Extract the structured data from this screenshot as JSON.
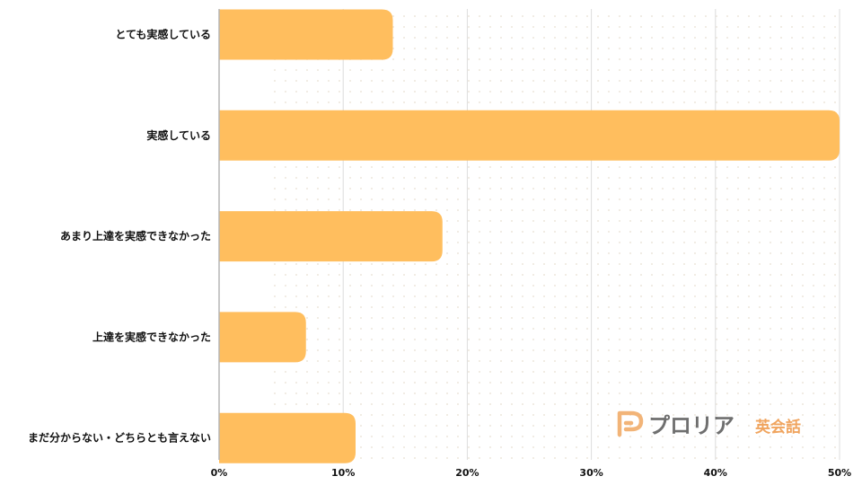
{
  "colors": {
    "bar": "#FFBE5E",
    "grid": "#dcdcdc",
    "axis": "#b5b5b5",
    "dots": "#ece7dc",
    "logo_orange": "#F2B478",
    "logo_gray": "#6f6f6f",
    "logo_sub": "#F0A45E"
  },
  "chart_data": {
    "type": "bar",
    "orientation": "horizontal",
    "categories": [
      "とても実感している",
      "実感している",
      "あまり上達を実感できなかった",
      "上達を実感できなかった",
      "まだ分からない・どちらとも言えない"
    ],
    "values": [
      14,
      50,
      18,
      7,
      11
    ],
    "unit": "%",
    "xlim": [
      0,
      50
    ],
    "xticks": [
      0,
      10,
      20,
      30,
      40,
      50
    ],
    "xtick_labels": [
      "0%",
      "10%",
      "20%",
      "30%",
      "40%",
      "50%"
    ],
    "grid": true
  },
  "logo": {
    "main": "プロリア",
    "sub": "英会話"
  }
}
